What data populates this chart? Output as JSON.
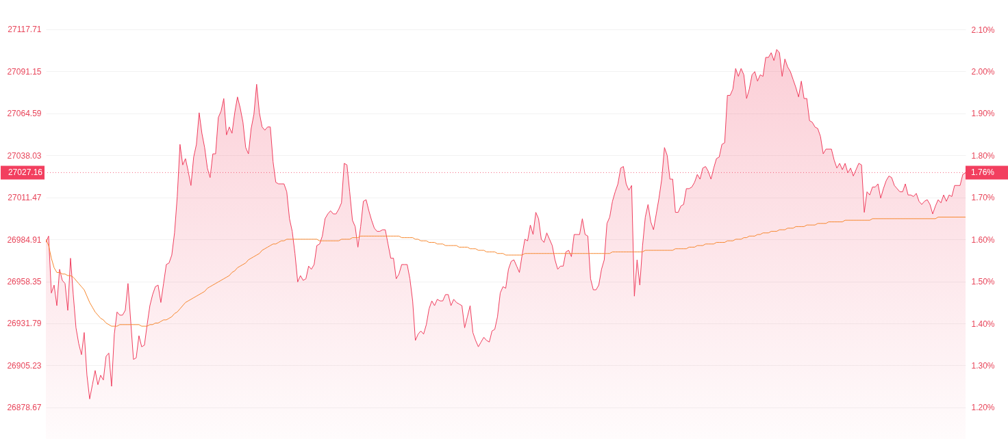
{
  "chart_data": {
    "type": "area",
    "categories": [
      null,
      null,
      null,
      null,
      null,
      null,
      null,
      null,
      null,
      null,
      null,
      null,
      null,
      null,
      null,
      null,
      null,
      null,
      null,
      null,
      null,
      null,
      null,
      null,
      null,
      null,
      null,
      null,
      null,
      null,
      null,
      null,
      null,
      null,
      null,
      null,
      null,
      null,
      null,
      null,
      null,
      null,
      null,
      null,
      null,
      null,
      null,
      null,
      null,
      null,
      null,
      null,
      null,
      null,
      null,
      null,
      null,
      null,
      null,
      null,
      null,
      null,
      null,
      null,
      null,
      null,
      null,
      null,
      null,
      null,
      null,
      null,
      null,
      null,
      null,
      null,
      null,
      null,
      null,
      null,
      null,
      null,
      null,
      null,
      null,
      null,
      null,
      null,
      null,
      null,
      null,
      null,
      null,
      null,
      null,
      null,
      null,
      null,
      null,
      null,
      null,
      null,
      null,
      null,
      null,
      null,
      null,
      null,
      null,
      null,
      null,
      null,
      null,
      null,
      null,
      null,
      null,
      null,
      null,
      null,
      null,
      null,
      null,
      null,
      null,
      null,
      null,
      null,
      null,
      null,
      null,
      null,
      null,
      null,
      null,
      null,
      null,
      null,
      null,
      null,
      null,
      null,
      null,
      null,
      null,
      null,
      null,
      null,
      null,
      null,
      null,
      null,
      null,
      null,
      null,
      null,
      null,
      null,
      null,
      null,
      null,
      null,
      null,
      null,
      null,
      null,
      null,
      null,
      null,
      null,
      null,
      null,
      null,
      null,
      null,
      null,
      null,
      null,
      null,
      null,
      null,
      null,
      null,
      null,
      null,
      null,
      null,
      null,
      null,
      null,
      null,
      null,
      null,
      null,
      null,
      null,
      null,
      null,
      null,
      null,
      null,
      null,
      null,
      null,
      null,
      null,
      null,
      null,
      null,
      null,
      null,
      null,
      null,
      null,
      null,
      null,
      null,
      null,
      null,
      null,
      null,
      null,
      null,
      null,
      null,
      null,
      null,
      null,
      null,
      null,
      null,
      null,
      null,
      null,
      null,
      null,
      null,
      null,
      null,
      null,
      null,
      null,
      null,
      null,
      null,
      null,
      null,
      null,
      null,
      null,
      null,
      null,
      null,
      null,
      null,
      null,
      null,
      null,
      null,
      null,
      null,
      null,
      null,
      null,
      null,
      null,
      null,
      null,
      null,
      null,
      null,
      null,
      null,
      null,
      null,
      null,
      null,
      null,
      null,
      null,
      null,
      null,
      null,
      null,
      null,
      null,
      null,
      null,
      null,
      null,
      null,
      null,
      null,
      null,
      null,
      null,
      null,
      null,
      null,
      null,
      null,
      null,
      null,
      null,
      null,
      null,
      null,
      null,
      null,
      null,
      null,
      null,
      null,
      null,
      null,
      null,
      null,
      null,
      null,
      null,
      null,
      null,
      null,
      null,
      null,
      null,
      null,
      null,
      null,
      null,
      null,
      null,
      null,
      null,
      null,
      null,
      null
    ],
    "ylim": [
      26858.7,
      27136.3
    ],
    "yticks": [
      26878.67,
      26905.23,
      26931.79,
      26958.35,
      26984.91,
      27011.47,
      27038.03,
      27064.59,
      27091.15,
      27117.71
    ],
    "y2lim": [
      1.125,
      2.17
    ],
    "y2ticks": [
      {
        "value": 1.2,
        "label": "1.20%"
      },
      {
        "value": 1.3,
        "label": "1.30%"
      },
      {
        "value": 1.4,
        "label": "1.40%"
      },
      {
        "value": 1.5,
        "label": "1.50%"
      },
      {
        "value": 1.6,
        "label": "1.60%"
      },
      {
        "value": 1.7,
        "label": "1.70%"
      },
      {
        "value": 1.8,
        "label": "1.80%"
      },
      {
        "value": 1.9,
        "label": "1.90%"
      },
      {
        "value": 2.0,
        "label": "2.00%"
      },
      {
        "value": 2.1,
        "label": "2.10%"
      }
    ],
    "grid": "y",
    "series": [
      {
        "color": "#f03e5e",
        "values": [
          26983,
          26987,
          26951,
          26956,
          26943,
          26966,
          26959,
          26957,
          26940,
          26973,
          26950,
          26929,
          26919,
          26912,
          26926,
          26899,
          26884,
          26893,
          26902,
          26893,
          26899,
          26896,
          26911,
          26913,
          26892,
          26925,
          26939,
          26937,
          26937,
          26940,
          26957,
          26933,
          26909,
          26910,
          26924,
          26917,
          26918,
          26931,
          26943,
          26950,
          26955,
          26956,
          26945,
          26957,
          26969,
          26970,
          26975,
          26989,
          27012,
          27045,
          27032,
          27036,
          27028,
          27019,
          27037,
          27045,
          27065,
          27052,
          27043,
          27030,
          27024,
          27039,
          27039,
          27062,
          27066,
          27074,
          27051,
          27056,
          27052,
          27065,
          27075,
          27068,
          27059,
          27043,
          27039,
          27055,
          27064,
          27083,
          27065,
          27056,
          27054,
          27056,
          27056,
          27034,
          27021,
          27020,
          27020,
          27020,
          27015,
          26998,
          26990,
          26976,
          26958,
          26962,
          26959,
          26960,
          26968,
          26966,
          26969,
          26981,
          26982,
          26987,
          26998,
          27001,
          27003,
          27001,
          27001,
          27004,
          27008,
          27033,
          27032,
          27015,
          26997,
          26993,
          26980,
          26993,
          27009,
          27010,
          27003,
          26997,
          26992,
          26990,
          26990,
          26991,
          26991,
          26982,
          26973,
          26973,
          26960,
          26963,
          26969,
          26969,
          26969,
          26960,
          26946,
          26921,
          26925,
          26927,
          26925,
          26931,
          26941,
          26946,
          26943,
          26947,
          26946,
          26946,
          26950,
          26950,
          26943,
          26947,
          26945,
          26944,
          26943,
          26929,
          26936,
          26943,
          26926,
          26921,
          26917,
          26920,
          26923,
          26921,
          26920,
          26927,
          26928,
          26936,
          26951,
          26955,
          26954,
          26966,
          26971,
          26972,
          26968,
          26964,
          26975,
          26985,
          26984,
          26994,
          26988,
          27002,
          26998,
          26985,
          26983,
          26989,
          26985,
          26981,
          26972,
          26966,
          26968,
          26968,
          26977,
          26978,
          26974,
          26988,
          26988,
          26988,
          26998,
          26988,
          26987,
          26960,
          26953,
          26953,
          26956,
          26966,
          26972,
          26995,
          26999,
          27009,
          27015,
          27020,
          27030,
          27031,
          27020,
          27016,
          27019,
          26949,
          26972,
          26956,
          26981,
          26999,
          27007,
          26996,
          26991,
          27001,
          27011,
          27023,
          27043,
          27038,
          27023,
          27023,
          27002,
          27002,
          27006,
          27007,
          27017,
          27017,
          27018,
          27021,
          27026,
          27023,
          27030,
          27031,
          27028,
          27023,
          27030,
          27036,
          27037,
          27045,
          27046,
          27076,
          27076,
          27080,
          27093,
          27088,
          27093,
          27089,
          27074,
          27080,
          27089,
          27091,
          27085,
          27089,
          27088,
          27100,
          27100,
          27103,
          27098,
          27105,
          27103,
          27088,
          27099,
          27094,
          27091,
          27086,
          27081,
          27075,
          27085,
          27074,
          27074,
          27060,
          27059,
          27056,
          27055,
          27050,
          27039,
          27042,
          27042,
          27042,
          27035,
          27030,
          27033,
          27029,
          27033,
          27027,
          27030,
          27025,
          27029,
          27033,
          27032,
          27002,
          27015,
          27013,
          27018,
          27018,
          27020,
          27011,
          27017,
          27022,
          27025,
          27024,
          27019,
          27017,
          27015,
          27015,
          27020,
          27013,
          27013,
          27012,
          27014,
          27009,
          27007,
          27009,
          27010,
          27007,
          27001,
          27006,
          27010,
          27008,
          27013,
          27009,
          27013,
          27012,
          27019,
          27019,
          27019,
          27026,
          27027
        ]
      },
      {
        "type": "line",
        "color": "#f7882f",
        "values": [
          26985,
          26981,
          26973,
          26967,
          26964,
          26964,
          26963,
          26963,
          26962,
          26962,
          26961,
          26959,
          26957,
          26955,
          26953,
          26949,
          26945,
          26942,
          26939,
          26937,
          26935,
          26934,
          26932,
          26931,
          26930,
          26930,
          26930,
          26931,
          26931,
          26931,
          26931,
          26931,
          26931,
          26931,
          26931,
          26930,
          26930,
          26930,
          26931,
          26931,
          26932,
          26932,
          26933,
          26934,
          26934,
          26935,
          26936,
          26938,
          26939,
          26941,
          26943,
          26945,
          26946,
          26947,
          26948,
          26949,
          26950,
          26951,
          26952,
          26954,
          26955,
          26956,
          26957,
          26958,
          26959,
          26960,
          26961,
          26962,
          26964,
          26965,
          26967,
          26968,
          26969,
          26970,
          26972,
          26973,
          26974,
          26975,
          26976,
          26978,
          26979,
          26980,
          26981,
          26982,
          26982,
          26983,
          26984,
          26984,
          26985,
          26985,
          26985,
          26985,
          26985,
          26985,
          26985,
          26985,
          26985,
          26985,
          26985,
          26985,
          26984,
          26984,
          26984,
          26984,
          26984,
          26984,
          26984,
          26984,
          26985,
          26985,
          26985,
          26985,
          26986,
          26986,
          26986,
          26987,
          26987,
          26987,
          26987,
          26987,
          26987,
          26987,
          26987,
          26987,
          26987,
          26987,
          26987,
          26987,
          26987,
          26987,
          26986,
          26986,
          26986,
          26986,
          26986,
          26985,
          26985,
          26984,
          26984,
          26984,
          26983,
          26983,
          26983,
          26982,
          26982,
          26982,
          26981,
          26981,
          26981,
          26981,
          26981,
          26980,
          26980,
          26980,
          26980,
          26979,
          26979,
          26979,
          26978,
          26978,
          26978,
          26977,
          26977,
          26977,
          26977,
          26976,
          26976,
          26976,
          26975,
          26975,
          26975,
          26975,
          26975,
          26975,
          26975,
          26976,
          26976,
          26976,
          26976,
          26976,
          26976,
          26976,
          26976,
          26976,
          26976,
          26976,
          26976,
          26976,
          26976,
          26976,
          26976,
          26976,
          26976,
          26976,
          26976,
          26976,
          26976,
          26976,
          26976,
          26976,
          26976,
          26976,
          26976,
          26976,
          26976,
          26976,
          26976,
          26977,
          26977,
          26977,
          26977,
          26977,
          26977,
          26977,
          26977,
          26977,
          26977,
          26977,
          26977,
          26978,
          26978,
          26978,
          26978,
          26978,
          26978,
          26978,
          26978,
          26978,
          26978,
          26978,
          26979,
          26979,
          26979,
          26979,
          26979,
          26980,
          26980,
          26980,
          26981,
          26981,
          26981,
          26982,
          26982,
          26982,
          26982,
          26983,
          26983,
          26983,
          26983,
          26984,
          26984,
          26984,
          26985,
          26985,
          26985,
          26986,
          26986,
          26987,
          26987,
          26987,
          26988,
          26988,
          26989,
          26989,
          26989,
          26990,
          26990,
          26990,
          26991,
          26991,
          26991,
          26992,
          26992,
          26992,
          26993,
          26993,
          26993,
          26993,
          26994,
          26994,
          26994,
          26994,
          26995,
          26995,
          26995,
          26995,
          26996,
          26996,
          26996,
          26996,
          26996,
          26996,
          26997,
          26997,
          26997,
          26997,
          26997,
          26997,
          26997,
          26997,
          26997,
          26997,
          26998,
          26998,
          26998,
          26998,
          26998,
          26998,
          26998,
          26998,
          26998,
          26998,
          26998,
          26998,
          26998,
          26998,
          26998,
          26998,
          26998,
          26998,
          26998,
          26998,
          26998,
          26998,
          26998,
          26998,
          26999,
          26999,
          26999,
          26999,
          26999,
          26999,
          26999,
          26999,
          26999,
          26999,
          26999
        ]
      }
    ],
    "ref_lines": [
      {
        "axis": "y",
        "value": 27027.16,
        "label": "27027.16",
        "color": "#f23f5f",
        "line_style": "dotted"
      }
    ],
    "annotations": [
      "1.76%"
    ]
  }
}
